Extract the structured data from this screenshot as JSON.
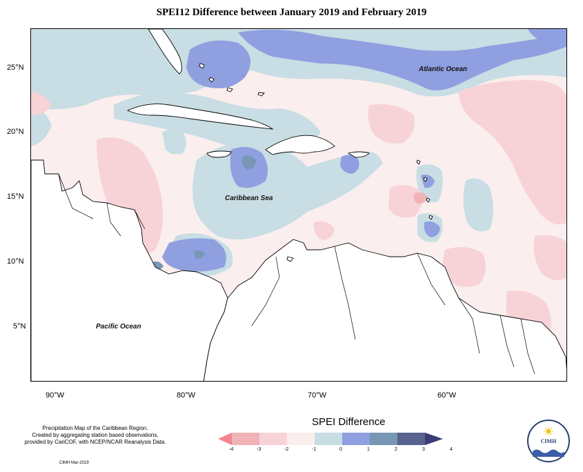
{
  "title": "SPEI12 Difference between January 2019 and February 2019",
  "map": {
    "labels": {
      "atlantic": "Atlantic Ocean",
      "caribbean": "Caribbean Sea",
      "pacific": "Pacific Ocean"
    },
    "lat_ticks": [
      "25°N",
      "20°N",
      "15°N",
      "10°N",
      "5°N"
    ],
    "lon_ticks": [
      "90°W",
      "80°W",
      "70°W",
      "60°W"
    ]
  },
  "notes": {
    "line1": "Precipitation Map of the Caribbean Region.",
    "line2": "Created by aggregating station based observations,",
    "line3": "provided by CariCOF, with NCEP/NCAR Reanalysis Data.",
    "credit": "CIMH Mar-2019"
  },
  "legend": {
    "title": "SPEI Difference",
    "ticks": [
      "-4",
      "-3",
      "-2",
      "-1",
      "0",
      "1",
      "2",
      "3",
      "4"
    ],
    "colors": [
      "#f4868e",
      "#efb3b8",
      "#f7d3d8",
      "#fbeeee",
      "#c8dde4",
      "#8f9fe0",
      "#7797b4",
      "#58628e",
      "#3a3c78"
    ]
  },
  "logo": {
    "text": "CIMH"
  }
}
